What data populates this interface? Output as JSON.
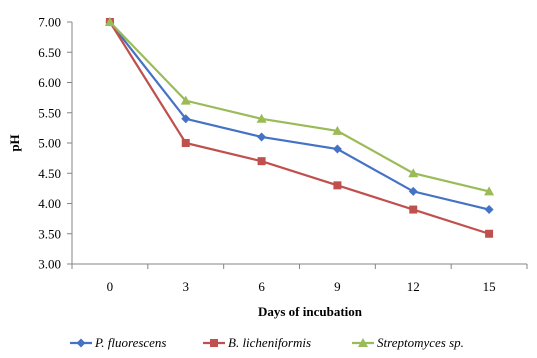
{
  "chart_data": {
    "type": "line",
    "xlabel": "Days of incubation",
    "ylabel": "pH",
    "categories": [
      "0",
      "3",
      "6",
      "9",
      "12",
      "15"
    ],
    "ylim": [
      3.0,
      7.0
    ],
    "yticks": [
      "3.00",
      "3.50",
      "4.00",
      "4.50",
      "5.00",
      "5.50",
      "6.00",
      "6.50",
      "7.00"
    ],
    "grid": false,
    "legend_position": "bottom",
    "series": [
      {
        "name": "P. fluorescens",
        "color": "#4472C4",
        "marker": "diamond",
        "values": [
          7.0,
          5.4,
          5.1,
          4.9,
          4.2,
          3.9
        ]
      },
      {
        "name": "B. licheniformis",
        "color": "#C0504D",
        "marker": "square",
        "values": [
          7.0,
          5.0,
          4.7,
          4.3,
          3.9,
          3.5
        ]
      },
      {
        "name": "Streptomyces sp.",
        "color": "#9BBB59",
        "marker": "triangle",
        "values": [
          7.0,
          5.7,
          5.4,
          5.2,
          4.5,
          4.2
        ]
      }
    ]
  }
}
